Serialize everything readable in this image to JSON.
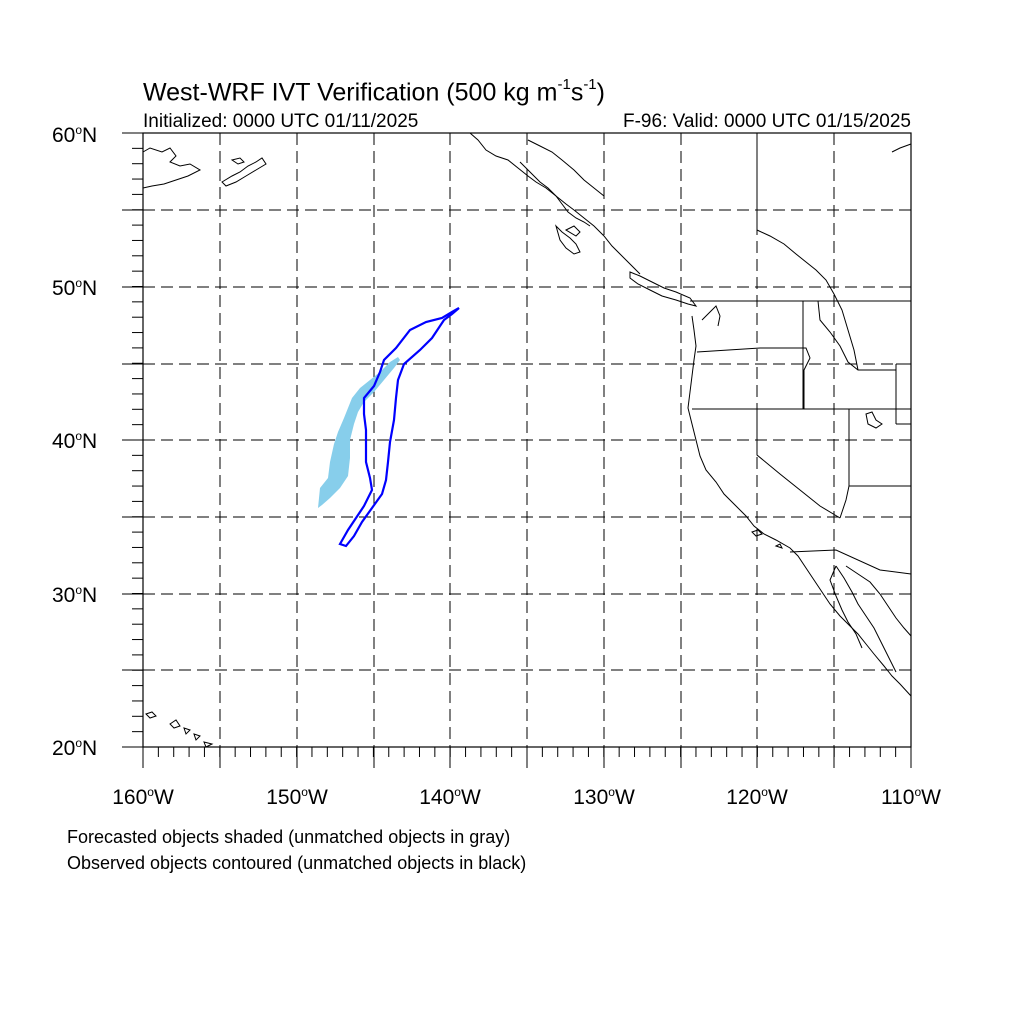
{
  "map": {
    "title_main": "West-WRF IVT Verification (500 kg m",
    "title_sup1": "-1",
    "title_mid": "s",
    "title_sup2": "-1",
    "title_end": ")",
    "initialized": "Initialized: 0000 UTC 01/11/2025",
    "valid": "F-96: Valid: 0000 UTC 01/15/2025",
    "lat_labels": [
      {
        "value": "60",
        "suffix": "N"
      },
      {
        "value": "50",
        "suffix": "N"
      },
      {
        "value": "40",
        "suffix": "N"
      },
      {
        "value": "30",
        "suffix": "N"
      },
      {
        "value": "20",
        "suffix": "N"
      }
    ],
    "lon_labels": [
      {
        "value": "160",
        "suffix": "W"
      },
      {
        "value": "150",
        "suffix": "W"
      },
      {
        "value": "140",
        "suffix": "W"
      },
      {
        "value": "130",
        "suffix": "W"
      },
      {
        "value": "120",
        "suffix": "W"
      },
      {
        "value": "110",
        "suffix": "W"
      }
    ],
    "degree_symbol": "o",
    "caption_forecast": "Forecasted objects shaded (unmatched objects in gray)",
    "caption_observed": "Observed objects contoured (unmatched objects in black)",
    "colors": {
      "forecast_fill": "#87ceeb",
      "observed_contour": "#0000ff",
      "coastline": "#000000",
      "grid": "#000000"
    }
  }
}
